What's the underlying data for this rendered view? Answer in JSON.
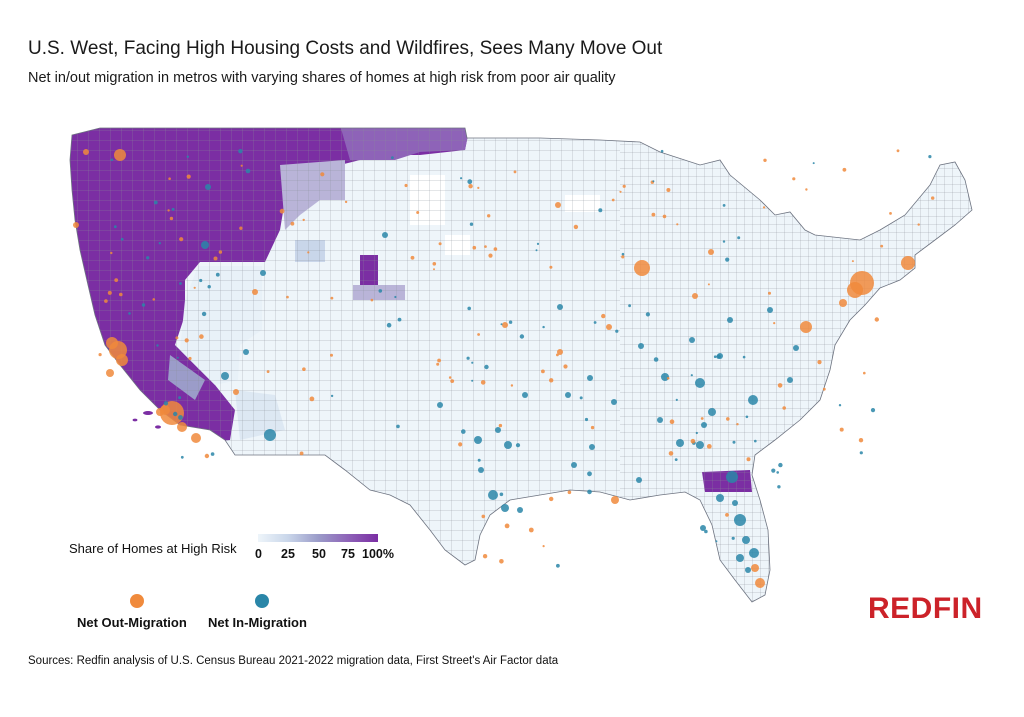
{
  "title": "U.S. West, Facing High Housing Costs and Wildfires, Sees Many Move Out",
  "subtitle": "Net in/out migration in metros with varying shares of homes at high risk from poor air quality",
  "legend": {
    "scale_label": "Share of Homes at High Risk",
    "ticks": [
      "0",
      "25",
      "50",
      "75",
      "100%"
    ],
    "ramp_colors": [
      "#eef5fa",
      "#c9d6ea",
      "#9b9cc9",
      "#8e63b8",
      "#7b2ea3"
    ],
    "out_label": "Net Out-Migration",
    "in_label": "Net In-Migration",
    "out_color": "#f08a3c",
    "in_color": "#2a86a8"
  },
  "logo": "REDFIN",
  "logo_color": "#cc2229",
  "source": "Sources: Redfin analysis of U.S. Census Bureau 2021-2022 migration data, First Street's Air Factor data",
  "colors": {
    "base": "#eef5fa",
    "purple": "#7b2ea3",
    "purple_mid": "#8e63b8",
    "lavender": "#b9b4d8",
    "border": "#8a8f99"
  }
}
